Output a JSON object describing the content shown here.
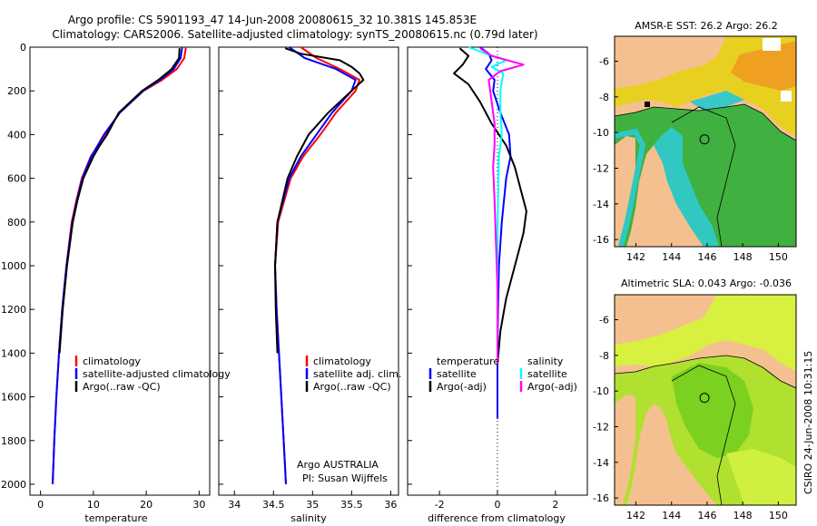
{
  "header": {
    "title_line1": "Argo profile: CS 5901193_47 14-Jun-2008 20080615_32 10.381S 145.853E",
    "title_line2": "Climatology: CARS2006. Satellite-adjusted climatology: synTS_20080615.nc (0.79d later)"
  },
  "side_stamp": "CSIRO 24-Jun-2008 10:31:15",
  "colors": {
    "climatology": "#ff0000",
    "satellite": "#0000ff",
    "argo": "#000000",
    "sat_salinity": "#00ffff",
    "argo_adj_salinity": "#ff00ff",
    "land": "#f5c08f"
  },
  "chart_data": [
    {
      "id": "temperature",
      "type": "line",
      "xlabel": "temperature",
      "xlim": [
        -2,
        32
      ],
      "ylim": [
        0,
        2050
      ],
      "x_ticks": [
        "0",
        "10",
        "20",
        "30"
      ],
      "y_ticks": [
        "0",
        "200",
        "400",
        "600",
        "800",
        "1000",
        "1200",
        "1400",
        "1600",
        "1800",
        "2000"
      ],
      "legend": [
        "climatology",
        "satellite-adjusted climatology",
        "Argo(..raw -QC)"
      ],
      "series": [
        {
          "name": "climatology",
          "color": "#ff0000",
          "depth": [
            0,
            50,
            100,
            150,
            200,
            300,
            400,
            500,
            600,
            700,
            800,
            1000,
            1200,
            1400,
            1600,
            1800,
            2000
          ],
          "values": [
            27.5,
            27.2,
            25.8,
            23,
            19.5,
            15,
            12.2,
            9.5,
            7.8,
            6.8,
            5.9,
            4.9,
            4.1,
            3.5,
            3,
            2.6,
            2.3
          ]
        },
        {
          "name": "satellite-adjusted climatology",
          "color": "#0000ff",
          "depth": [
            0,
            50,
            100,
            150,
            200,
            300,
            400,
            500,
            600,
            700,
            800,
            1000,
            1200,
            1400,
            1600,
            1800,
            2000
          ],
          "values": [
            26.8,
            26.5,
            25.2,
            22.6,
            19.4,
            15,
            12,
            9.6,
            7.9,
            6.9,
            6,
            4.9,
            4.1,
            3.5,
            3,
            2.6,
            2.3
          ]
        },
        {
          "name": "Argo(..raw -QC)",
          "color": "#000000",
          "depth": [
            5,
            50,
            100,
            150,
            200,
            300,
            400,
            450,
            500,
            600,
            700,
            800,
            1000,
            1200,
            1400
          ],
          "values": [
            26.3,
            26.2,
            24.8,
            22.3,
            19.2,
            14.8,
            12.6,
            11.2,
            10,
            8.1,
            7,
            6.1,
            5,
            4.2,
            3.6
          ]
        }
      ]
    },
    {
      "id": "salinity",
      "type": "line",
      "xlabel": "salinity",
      "xlim": [
        33.8,
        36.1
      ],
      "ylim": [
        0,
        2050
      ],
      "x_ticks": [
        "34",
        "34.5",
        "35",
        "35.5",
        "36"
      ],
      "legend": [
        "climatology",
        "satellite adj. clim.",
        "Argo(..raw -QC)"
      ],
      "annotation": [
        "Argo AUSTRALIA",
        "PI: Susan Wijffels"
      ],
      "series": [
        {
          "name": "climatology",
          "color": "#ff0000",
          "depth": [
            0,
            50,
            100,
            150,
            200,
            300,
            400,
            500,
            600,
            800,
            1000,
            1200,
            1400,
            1600,
            1800,
            2000
          ],
          "values": [
            34.85,
            35.05,
            35.35,
            35.6,
            35.55,
            35.3,
            35.1,
            34.88,
            34.72,
            34.56,
            34.52,
            34.54,
            34.57,
            34.6,
            34.63,
            34.66
          ]
        },
        {
          "name": "satellite adj. clim.",
          "color": "#0000ff",
          "depth": [
            0,
            50,
            100,
            150,
            200,
            300,
            400,
            500,
            600,
            800,
            1000,
            1200,
            1400,
            1600,
            1800,
            2000
          ],
          "values": [
            34.7,
            34.9,
            35.3,
            35.55,
            35.5,
            35.25,
            35.05,
            34.85,
            34.7,
            34.55,
            34.52,
            34.54,
            34.57,
            34.6,
            34.63,
            34.66
          ]
        },
        {
          "name": "Argo(..raw -QC)",
          "color": "#000000",
          "depth": [
            5,
            30,
            60,
            90,
            120,
            150,
            200,
            300,
            400,
            500,
            600,
            800,
            1000,
            1200,
            1400
          ],
          "values": [
            34.65,
            34.85,
            35.35,
            35.5,
            35.6,
            35.65,
            35.5,
            35.2,
            34.95,
            34.8,
            34.68,
            34.55,
            34.52,
            34.53,
            34.55
          ]
        }
      ]
    },
    {
      "id": "difference",
      "type": "line",
      "xlabel": "difference from climatology",
      "xlim": [
        -3.1,
        3.1
      ],
      "ylim": [
        0,
        2050
      ],
      "x_ticks": [
        "-2",
        "0",
        "2"
      ],
      "legend_headers": [
        "temperature",
        "salinity"
      ],
      "legend": [
        "satellite",
        "Argo(-adj)",
        "satellite",
        "Argo(-adj)"
      ],
      "series": [
        {
          "name": "temperature satellite",
          "color": "#0000ff",
          "depth": [
            0,
            30,
            60,
            100,
            150,
            200,
            300,
            400,
            500,
            600,
            800,
            1000,
            1200,
            1400,
            1600,
            1700
          ],
          "values": [
            -0.6,
            -0.3,
            -0.2,
            -0.4,
            -0.1,
            -0.15,
            0.1,
            0.4,
            0.45,
            0.3,
            0.15,
            0.05,
            0.02,
            0,
            0,
            0
          ]
        },
        {
          "name": "temperature Argo(-adj)",
          "color": "#000000",
          "depth": [
            5,
            40,
            80,
            120,
            170,
            250,
            350,
            450,
            550,
            650,
            750,
            850,
            950,
            1050,
            1150,
            1300,
            1450
          ],
          "values": [
            -1.3,
            -1,
            -1.2,
            -1.5,
            -1,
            -0.6,
            -0.2,
            0.3,
            0.6,
            0.8,
            1,
            0.9,
            0.7,
            0.5,
            0.3,
            0.1,
            0
          ]
        },
        {
          "name": "salinity satellite",
          "color": "#00ffff",
          "depth": [
            0,
            30,
            60,
            90,
            120,
            200,
            300,
            400,
            500,
            700,
            900,
            1100,
            1300,
            1450
          ],
          "values": [
            -1,
            -0.4,
            0.3,
            -0.2,
            0.2,
            0.1,
            0.1,
            0.15,
            0.05,
            0.02,
            0,
            0,
            0,
            0
          ]
        },
        {
          "name": "salinity Argo(-adj)",
          "color": "#ff00ff",
          "depth": [
            5,
            40,
            80,
            110,
            150,
            250,
            350,
            450,
            550,
            700,
            900,
            1100,
            1300,
            1450
          ],
          "values": [
            -0.6,
            -0.2,
            0.9,
            0.1,
            -0.3,
            -0.2,
            -0.1,
            -0.1,
            -0.15,
            -0.1,
            -0.05,
            0,
            0,
            0
          ]
        }
      ]
    }
  ],
  "maps": {
    "sst": {
      "title": "AMSR-E SST: 26.2  Argo: 26.2",
      "y_ticks": [
        "-6",
        "-8",
        "-10",
        "-12",
        "-14",
        "-16"
      ],
      "x_ticks": [
        "142",
        "144",
        "146",
        "148",
        "150"
      ],
      "argo_lon": 145.853,
      "argo_lat": -10.381
    },
    "sla": {
      "title": "Altimetric SLA: 0.043  Argo: -0.036",
      "y_ticks": [
        "-6",
        "-8",
        "-10",
        "-12",
        "-14",
        "-16"
      ],
      "x_ticks": [
        "142",
        "144",
        "146",
        "148",
        "150"
      ],
      "argo_lon": 145.853,
      "argo_lat": -10.381
    }
  }
}
